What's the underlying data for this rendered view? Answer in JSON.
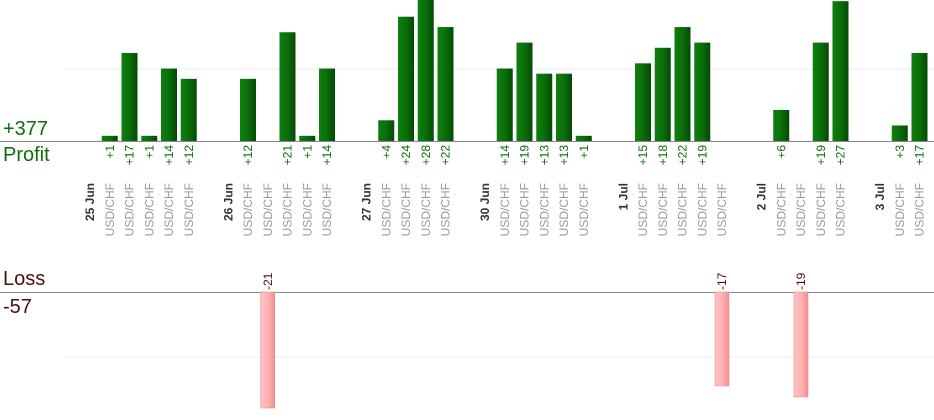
{
  "summary": {
    "profit_total": "+377",
    "profit_label": "Profit",
    "loss_label": "Loss",
    "loss_total": "-57"
  },
  "colors": {
    "profit_bar": "#0b6e0b",
    "profit_text": "#0b6e0b",
    "loss_bar": "#ffb3b3",
    "loss_text": "#4a0f0f",
    "symbol_text": "#9a9a9a",
    "date_text": "#333333",
    "gridline": "#ececec",
    "baseline": "#888888"
  },
  "chart_data": {
    "type": "bar",
    "profit_max": 28,
    "loss_max": 21,
    "columns": [
      {
        "kind": "date",
        "label": "25 Jun"
      },
      {
        "kind": "trade",
        "symbol": "USD/CHF",
        "label": "+1",
        "value": 1
      },
      {
        "kind": "trade",
        "symbol": "USD/CHF",
        "label": "+17",
        "value": 17
      },
      {
        "kind": "trade",
        "symbol": "USD/CHF",
        "label": "+1",
        "value": 1
      },
      {
        "kind": "trade",
        "symbol": "USD/CHF",
        "label": "+14",
        "value": 14
      },
      {
        "kind": "trade",
        "symbol": "USD/CHF",
        "label": "+12",
        "value": 12
      },
      {
        "kind": "gap"
      },
      {
        "kind": "date",
        "label": "26 Jun"
      },
      {
        "kind": "trade",
        "symbol": "USD/CHF",
        "label": "+12",
        "value": 12
      },
      {
        "kind": "trade",
        "symbol": "USD/CHF",
        "label": "-21",
        "value": -21
      },
      {
        "kind": "trade",
        "symbol": "USD/CHF",
        "label": "+21",
        "value": 21
      },
      {
        "kind": "trade",
        "symbol": "USD/CHF",
        "label": "+1",
        "value": 1
      },
      {
        "kind": "trade",
        "symbol": "USD/CHF",
        "label": "+14",
        "value": 14
      },
      {
        "kind": "gap"
      },
      {
        "kind": "date",
        "label": "27 Jun"
      },
      {
        "kind": "trade",
        "symbol": "USD/CHF",
        "label": "+4",
        "value": 4
      },
      {
        "kind": "trade",
        "symbol": "USD/CHF",
        "label": "+24",
        "value": 24
      },
      {
        "kind": "trade",
        "symbol": "USD/CHF",
        "label": "+28",
        "value": 28
      },
      {
        "kind": "trade",
        "symbol": "USD/CHF",
        "label": "+22",
        "value": 22
      },
      {
        "kind": "gap"
      },
      {
        "kind": "date",
        "label": "30 Jun"
      },
      {
        "kind": "trade",
        "symbol": "USD/CHF",
        "label": "+14",
        "value": 14
      },
      {
        "kind": "trade",
        "symbol": "USD/CHF",
        "label": "+19",
        "value": 19
      },
      {
        "kind": "trade",
        "symbol": "USD/CHF",
        "label": "+13",
        "value": 13
      },
      {
        "kind": "trade",
        "symbol": "USD/CHF",
        "label": "+13",
        "value": 13
      },
      {
        "kind": "trade",
        "symbol": "USD/CHF",
        "label": "+1",
        "value": 1
      },
      {
        "kind": "gap"
      },
      {
        "kind": "date",
        "label": "1 Jul"
      },
      {
        "kind": "trade",
        "symbol": "USD/CHF",
        "label": "+15",
        "value": 15
      },
      {
        "kind": "trade",
        "symbol": "USD/CHF",
        "label": "+18",
        "value": 18
      },
      {
        "kind": "trade",
        "symbol": "USD/CHF",
        "label": "+22",
        "value": 22
      },
      {
        "kind": "trade",
        "symbol": "USD/CHF",
        "label": "+19",
        "value": 19
      },
      {
        "kind": "trade",
        "symbol": "USD/CHF",
        "label": "-17",
        "value": -17
      },
      {
        "kind": "gap"
      },
      {
        "kind": "date",
        "label": "2 Jul"
      },
      {
        "kind": "trade",
        "symbol": "USD/CHF",
        "label": "+6",
        "value": 6
      },
      {
        "kind": "trade",
        "symbol": "USD/CHF",
        "label": "-19",
        "value": -19
      },
      {
        "kind": "trade",
        "symbol": "USD/CHF",
        "label": "+19",
        "value": 19
      },
      {
        "kind": "trade",
        "symbol": "USD/CHF",
        "label": "+27",
        "value": 27
      },
      {
        "kind": "gap"
      },
      {
        "kind": "date",
        "label": "3 Jul"
      },
      {
        "kind": "trade",
        "symbol": "USD/CHF",
        "label": "+3",
        "value": 3
      },
      {
        "kind": "trade",
        "symbol": "USD/CHF",
        "label": "+17",
        "value": 17
      }
    ]
  }
}
